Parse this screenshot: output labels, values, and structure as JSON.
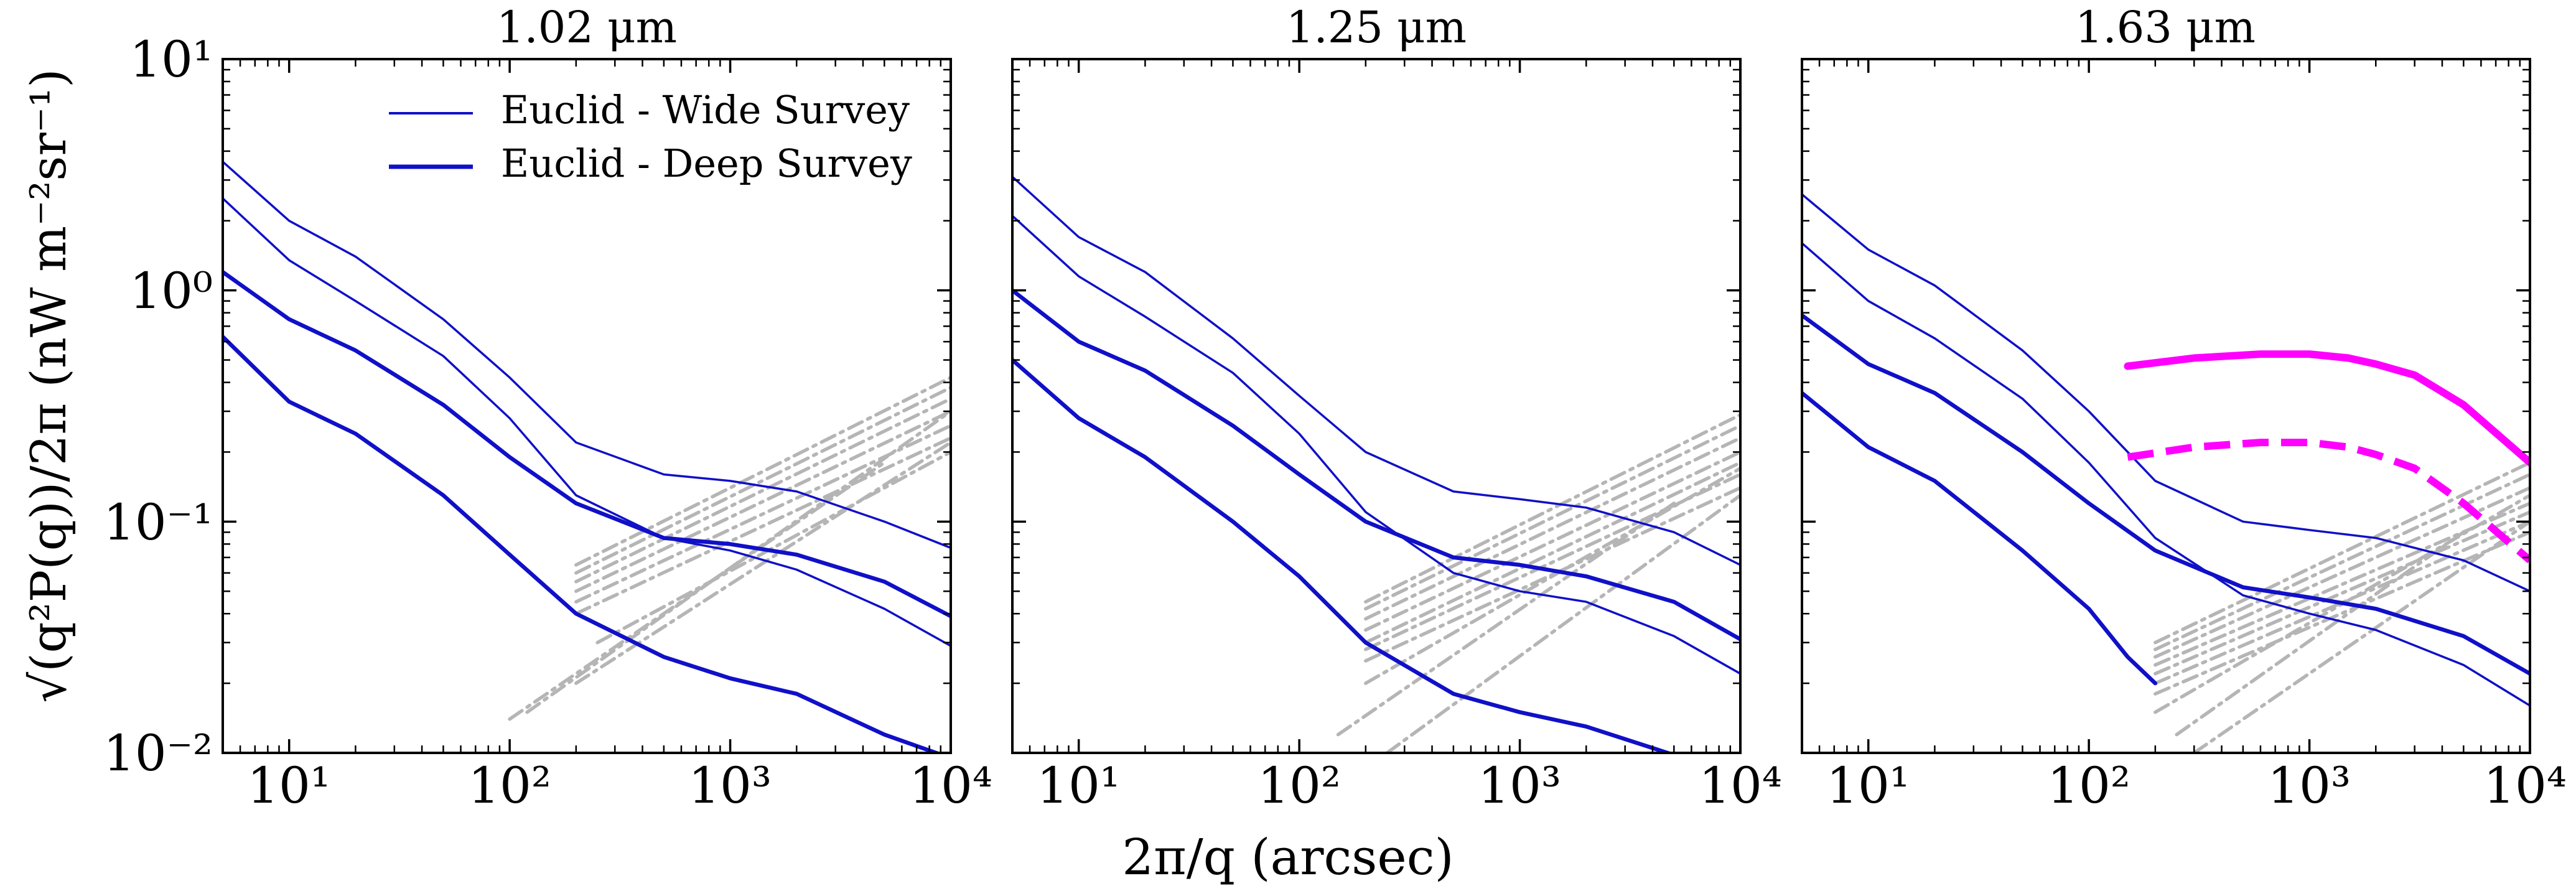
{
  "figure": {
    "xlabel": "2π/q (arcsec)",
    "ylabel": "√(q²P(q))/2π (nW m⁻²sr⁻¹)",
    "ytick_labels": [
      "10¹",
      "10⁰",
      "10⁻¹",
      "10⁻²"
    ],
    "xtick_labels": [
      "10¹",
      "10²",
      "10³",
      "10⁴"
    ]
  },
  "legend": {
    "items": [
      {
        "label": "Euclid - Wide Survey",
        "color": "#1010c8",
        "width": "thin"
      },
      {
        "label": "Euclid - Deep Survey",
        "color": "#1010c8",
        "width": "thick"
      }
    ]
  },
  "chart_data": [
    {
      "type": "line",
      "title": "1.02 μm",
      "xscale": "log",
      "yscale": "log",
      "xlim": [
        5,
        10000
      ],
      "ylim": [
        0.01,
        10
      ],
      "series": [
        {
          "name": "Euclid - Wide Survey (upper)",
          "style": "solid-thin",
          "color": "#1010c8",
          "x": [
            5,
            10,
            20,
            50,
            100,
            200,
            500,
            1000,
            2000,
            5000,
            10000
          ],
          "y": [
            3.6,
            2.0,
            1.4,
            0.75,
            0.42,
            0.22,
            0.16,
            0.15,
            0.135,
            0.1,
            0.077
          ]
        },
        {
          "name": "Euclid - Wide Survey (lower)",
          "style": "solid-thin",
          "color": "#1010c8",
          "x": [
            5,
            10,
            20,
            50,
            100,
            200,
            500,
            1000,
            2000,
            5000,
            10000
          ],
          "y": [
            2.5,
            1.35,
            0.9,
            0.52,
            0.28,
            0.13,
            0.085,
            0.075,
            0.062,
            0.042,
            0.029
          ]
        },
        {
          "name": "Euclid - Deep Survey (upper)",
          "style": "solid-thick",
          "color": "#1010c8",
          "x": [
            5,
            10,
            20,
            50,
            100,
            200,
            500,
            1000,
            2000,
            5000,
            10000
          ],
          "y": [
            1.2,
            0.75,
            0.55,
            0.32,
            0.19,
            0.12,
            0.085,
            0.08,
            0.072,
            0.055,
            0.039
          ]
        },
        {
          "name": "Euclid - Deep Survey (lower)",
          "style": "solid-thick",
          "color": "#1010c8",
          "x": [
            5,
            10,
            20,
            50,
            100,
            200,
            500,
            1000,
            2000,
            5000,
            10000
          ],
          "y": [
            0.63,
            0.33,
            0.24,
            0.13,
            0.072,
            0.04,
            0.026,
            0.021,
            0.018,
            0.012,
            0.0095
          ]
        },
        {
          "name": "grey-1",
          "style": "dashdot",
          "color": "#b5b5b5",
          "x": [
            200,
            10000
          ],
          "y": [
            0.065,
            0.42
          ]
        },
        {
          "name": "grey-2",
          "style": "dashdot",
          "color": "#b5b5b5",
          "x": [
            200,
            10000
          ],
          "y": [
            0.06,
            0.38
          ]
        },
        {
          "name": "grey-3",
          "style": "dashdot",
          "color": "#b5b5b5",
          "x": [
            200,
            10000
          ],
          "y": [
            0.055,
            0.34
          ]
        },
        {
          "name": "grey-4",
          "style": "dashdot",
          "color": "#b5b5b5",
          "x": [
            200,
            10000
          ],
          "y": [
            0.05,
            0.3
          ]
        },
        {
          "name": "grey-5",
          "style": "dashdot",
          "color": "#b5b5b5",
          "x": [
            200,
            10000
          ],
          "y": [
            0.045,
            0.26
          ]
        },
        {
          "name": "grey-6",
          "style": "dashdot",
          "color": "#b5b5b5",
          "x": [
            200,
            10000
          ],
          "y": [
            0.04,
            0.23
          ]
        },
        {
          "name": "grey-7",
          "style": "dashdot",
          "color": "#b5b5b5",
          "x": [
            250,
            10000
          ],
          "y": [
            0.03,
            0.2
          ]
        },
        {
          "name": "grey-8",
          "style": "dashdot",
          "color": "#b5b5b5",
          "x": [
            200,
            10000
          ],
          "y": [
            0.02,
            0.22
          ]
        },
        {
          "name": "grey-9",
          "style": "dashdot",
          "color": "#b5b5b5",
          "x": [
            120,
            10000
          ],
          "y": [
            0.015,
            0.3
          ]
        },
        {
          "name": "grey-10",
          "style": "dashdot",
          "color": "#b5b5b5",
          "x": [
            100,
            5000
          ],
          "y": [
            0.014,
            0.18
          ]
        }
      ]
    },
    {
      "type": "line",
      "title": "1.25 μm",
      "xscale": "log",
      "yscale": "log",
      "xlim": [
        5,
        10000
      ],
      "ylim": [
        0.01,
        10
      ],
      "series": [
        {
          "name": "Euclid - Wide Survey (upper)",
          "style": "solid-thin",
          "color": "#1010c8",
          "x": [
            5,
            10,
            20,
            50,
            100,
            200,
            500,
            1000,
            2000,
            5000,
            10000
          ],
          "y": [
            3.1,
            1.7,
            1.2,
            0.62,
            0.35,
            0.2,
            0.135,
            0.125,
            0.115,
            0.09,
            0.065
          ]
        },
        {
          "name": "Euclid - Wide Survey (lower)",
          "style": "solid-thin",
          "color": "#1010c8",
          "x": [
            5,
            10,
            20,
            50,
            100,
            200,
            500,
            1000,
            2000,
            5000,
            10000
          ],
          "y": [
            2.1,
            1.15,
            0.77,
            0.44,
            0.24,
            0.11,
            0.06,
            0.05,
            0.045,
            0.032,
            0.022
          ]
        },
        {
          "name": "Euclid - Deep Survey (upper)",
          "style": "solid-thick",
          "color": "#1010c8",
          "x": [
            5,
            10,
            20,
            50,
            100,
            200,
            500,
            1000,
            2000,
            5000,
            10000
          ],
          "y": [
            1.0,
            0.6,
            0.45,
            0.26,
            0.16,
            0.1,
            0.07,
            0.065,
            0.058,
            0.045,
            0.031
          ]
        },
        {
          "name": "Euclid - Deep Survey (lower)",
          "style": "solid-thick",
          "color": "#1010c8",
          "x": [
            5,
            10,
            20,
            50,
            100,
            200,
            500,
            1000,
            2000,
            5000
          ],
          "y": [
            0.5,
            0.28,
            0.19,
            0.1,
            0.058,
            0.03,
            0.018,
            0.015,
            0.013,
            0.0098
          ]
        },
        {
          "name": "grey-1",
          "style": "dashdot",
          "color": "#b5b5b5",
          "x": [
            200,
            10000
          ],
          "y": [
            0.045,
            0.29
          ]
        },
        {
          "name": "grey-2",
          "style": "dashdot",
          "color": "#b5b5b5",
          "x": [
            200,
            10000
          ],
          "y": [
            0.042,
            0.26
          ]
        },
        {
          "name": "grey-3",
          "style": "dashdot",
          "color": "#b5b5b5",
          "x": [
            200,
            10000
          ],
          "y": [
            0.038,
            0.23
          ]
        },
        {
          "name": "grey-4",
          "style": "dashdot",
          "color": "#b5b5b5",
          "x": [
            200,
            10000
          ],
          "y": [
            0.034,
            0.2
          ]
        },
        {
          "name": "grey-5",
          "style": "dashdot",
          "color": "#b5b5b5",
          "x": [
            200,
            10000
          ],
          "y": [
            0.03,
            0.18
          ]
        },
        {
          "name": "grey-6",
          "style": "dashdot",
          "color": "#b5b5b5",
          "x": [
            200,
            10000
          ],
          "y": [
            0.028,
            0.16
          ]
        },
        {
          "name": "grey-7",
          "style": "dashdot",
          "color": "#b5b5b5",
          "x": [
            200,
            10000
          ],
          "y": [
            0.025,
            0.14
          ]
        },
        {
          "name": "grey-8",
          "style": "dashdot",
          "color": "#b5b5b5",
          "x": [
            200,
            10000
          ],
          "y": [
            0.02,
            0.17
          ]
        },
        {
          "name": "grey-9",
          "style": "dashdot",
          "color": "#b5b5b5",
          "x": [
            150,
            5000
          ],
          "y": [
            0.012,
            0.12
          ]
        },
        {
          "name": "grey-10",
          "style": "dashdot",
          "color": "#b5b5b5",
          "x": [
            250,
            10000
          ],
          "y": [
            0.01,
            0.13
          ]
        }
      ]
    },
    {
      "type": "line",
      "title": "1.63 μm",
      "xscale": "log",
      "yscale": "log",
      "xlim": [
        5,
        10000
      ],
      "ylim": [
        0.01,
        10
      ],
      "series": [
        {
          "name": "Euclid - Wide Survey (upper)",
          "style": "solid-thin",
          "color": "#1010c8",
          "x": [
            5,
            10,
            20,
            50,
            100,
            200,
            500,
            1000,
            2000,
            5000,
            10000
          ],
          "y": [
            2.6,
            1.5,
            1.05,
            0.55,
            0.3,
            0.15,
            0.1,
            0.092,
            0.085,
            0.068,
            0.05
          ]
        },
        {
          "name": "Euclid - Wide Survey (lower)",
          "style": "solid-thin",
          "color": "#1010c8",
          "x": [
            5,
            10,
            20,
            50,
            100,
            200,
            500,
            1000,
            2000,
            5000,
            10000
          ],
          "y": [
            1.6,
            0.9,
            0.62,
            0.34,
            0.18,
            0.085,
            0.048,
            0.04,
            0.034,
            0.024,
            0.016
          ]
        },
        {
          "name": "Euclid - Deep Survey (upper)",
          "style": "solid-thick",
          "color": "#1010c8",
          "x": [
            5,
            10,
            20,
            50,
            100,
            200,
            500,
            1000,
            2000,
            5000,
            10000
          ],
          "y": [
            0.78,
            0.48,
            0.36,
            0.2,
            0.12,
            0.075,
            0.052,
            0.047,
            0.042,
            0.032,
            0.022
          ]
        },
        {
          "name": "Euclid - Deep Survey (lower)",
          "style": "solid-thick",
          "color": "#1010c8",
          "x": [
            5,
            10,
            20,
            50,
            100,
            150,
            200
          ],
          "y": [
            0.36,
            0.21,
            0.15,
            0.075,
            0.042,
            0.026,
            0.02
          ]
        },
        {
          "name": "Magenta solid",
          "style": "solid-thick",
          "color": "#ff00ff",
          "x": [
            150,
            300,
            600,
            1000,
            1500,
            2000,
            3000,
            5000,
            10000
          ],
          "y": [
            0.47,
            0.51,
            0.53,
            0.53,
            0.51,
            0.48,
            0.43,
            0.32,
            0.18
          ]
        },
        {
          "name": "Magenta dashed",
          "style": "dashed-thick",
          "color": "#ff00ff",
          "x": [
            150,
            300,
            600,
            1000,
            1500,
            2000,
            3000,
            5000,
            10000
          ],
          "y": [
            0.19,
            0.21,
            0.22,
            0.22,
            0.21,
            0.195,
            0.17,
            0.12,
            0.068
          ]
        },
        {
          "name": "grey-1",
          "style": "dashdot",
          "color": "#b5b5b5",
          "x": [
            200,
            10000
          ],
          "y": [
            0.03,
            0.18
          ]
        },
        {
          "name": "grey-2",
          "style": "dashdot",
          "color": "#b5b5b5",
          "x": [
            200,
            10000
          ],
          "y": [
            0.028,
            0.16
          ]
        },
        {
          "name": "grey-3",
          "style": "dashdot",
          "color": "#b5b5b5",
          "x": [
            200,
            10000
          ],
          "y": [
            0.026,
            0.14
          ]
        },
        {
          "name": "grey-4",
          "style": "dashdot",
          "color": "#b5b5b5",
          "x": [
            200,
            10000
          ],
          "y": [
            0.024,
            0.12
          ]
        },
        {
          "name": "grey-5",
          "style": "dashdot",
          "color": "#b5b5b5",
          "x": [
            200,
            10000
          ],
          "y": [
            0.022,
            0.11
          ]
        },
        {
          "name": "grey-6",
          "style": "dashdot",
          "color": "#b5b5b5",
          "x": [
            200,
            10000
          ],
          "y": [
            0.02,
            0.1
          ]
        },
        {
          "name": "grey-7",
          "style": "dashdot",
          "color": "#b5b5b5",
          "x": [
            200,
            10000
          ],
          "y": [
            0.018,
            0.09
          ]
        },
        {
          "name": "grey-8",
          "style": "dashdot",
          "color": "#b5b5b5",
          "x": [
            200,
            10000
          ],
          "y": [
            0.015,
            0.13
          ]
        },
        {
          "name": "grey-9",
          "style": "dashdot",
          "color": "#b5b5b5",
          "x": [
            250,
            5000
          ],
          "y": [
            0.012,
            0.09
          ]
        },
        {
          "name": "grey-10",
          "style": "dashdot",
          "color": "#b5b5b5",
          "x": [
            300,
            10000
          ],
          "y": [
            0.01,
            0.1
          ]
        }
      ]
    }
  ]
}
